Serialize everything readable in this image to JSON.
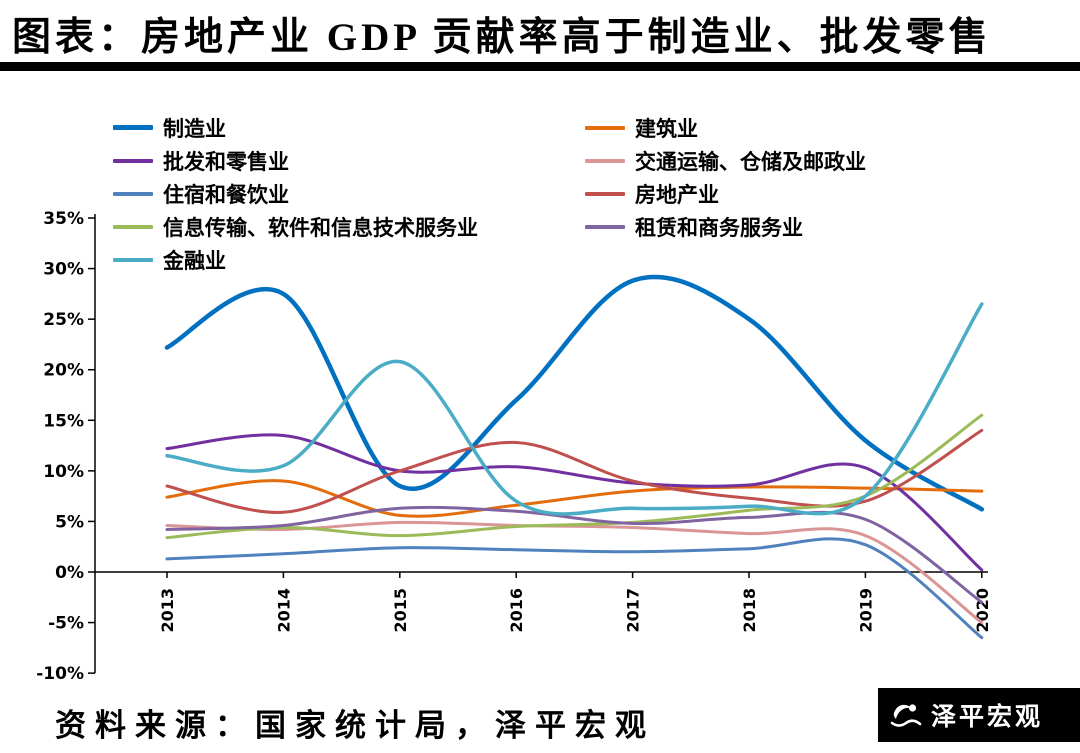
{
  "page": {
    "title": "图表：房地产业 GDP 贡献率高于制造业、批发零售",
    "source_note": "资料来源：国家统计局，泽平宏观",
    "brand_name": "泽平宏观"
  },
  "chart_data": {
    "type": "line",
    "title": "房地产业 GDP 贡献率高于制造业、批发零售",
    "x": [
      2013,
      2014,
      2015,
      2016,
      2017,
      2018,
      2019,
      2020
    ],
    "xlabel": "",
    "ylabel": "GDP贡献率",
    "unit": "%",
    "ylim": [
      -10,
      35
    ],
    "y_tick_step": 5,
    "grid": false,
    "legend_position": "top",
    "series": [
      {
        "name": "制造业",
        "color": "#0070C0",
        "line_width": 4.5,
        "values": [
          22.2,
          27.5,
          8.5,
          17.0,
          28.8,
          25.0,
          13.0,
          6.2
        ]
      },
      {
        "name": "建筑业",
        "color": "#E46C0A",
        "line_width": 3,
        "values": [
          7.4,
          9.0,
          5.6,
          6.6,
          8.0,
          8.4,
          8.3,
          8.0
        ]
      },
      {
        "name": "批发和零售业",
        "color": "#7030A0",
        "line_width": 3,
        "values": [
          12.2,
          13.5,
          10.0,
          10.4,
          8.8,
          8.6,
          10.3,
          0.2
        ]
      },
      {
        "name": "交通运输、仓储及邮政业",
        "color": "#D99694",
        "line_width": 3,
        "values": [
          4.6,
          4.2,
          4.9,
          4.6,
          4.4,
          3.8,
          3.6,
          -5.0
        ]
      },
      {
        "name": "住宿和餐饮业",
        "color": "#4F81BD",
        "line_width": 3,
        "values": [
          1.3,
          1.8,
          2.4,
          2.2,
          2.0,
          2.3,
          2.7,
          -6.5
        ]
      },
      {
        "name": "房地产业",
        "color": "#C0504D",
        "line_width": 3,
        "values": [
          8.5,
          5.9,
          10.0,
          12.8,
          9.0,
          7.3,
          7.0,
          14.0
        ]
      },
      {
        "name": "信息传输、软件和信息技术服务业",
        "color": "#9BBB59",
        "line_width": 3,
        "values": [
          3.4,
          4.4,
          3.6,
          4.5,
          4.9,
          6.1,
          7.5,
          15.5
        ]
      },
      {
        "name": "租赁和商务服务业",
        "color": "#8064A2",
        "line_width": 3,
        "values": [
          4.2,
          4.6,
          6.3,
          6.0,
          4.8,
          5.4,
          5.2,
          -3.0
        ]
      },
      {
        "name": "金融业",
        "color": "#4BACC6",
        "line_width": 3.5,
        "values": [
          11.5,
          10.5,
          20.8,
          7.0,
          6.3,
          6.5,
          7.5,
          26.5
        ]
      }
    ],
    "legend_layout": {
      "left_column": [
        0,
        2,
        4,
        6,
        8
      ],
      "right_column": [
        1,
        3,
        5,
        7
      ]
    }
  }
}
